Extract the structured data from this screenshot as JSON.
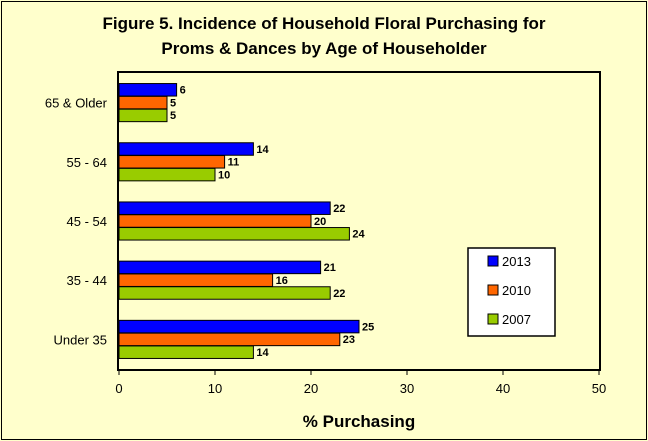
{
  "chart_data": {
    "type": "bar",
    "orientation": "horizontal",
    "title_line1": "Figure 5.  Incidence of Household Floral Purchasing for",
    "title_line2": "Proms & Dances by Age of Householder",
    "xlabel": "% Purchasing",
    "ylabel": "",
    "xlim": [
      0,
      50
    ],
    "x_ticks": [
      "0",
      "10",
      "20",
      "30",
      "40",
      "50"
    ],
    "categories": [
      "65 & Older",
      "55 - 64",
      "45 - 54",
      "35 - 44",
      "Under 35"
    ],
    "series": [
      {
        "name": "2013",
        "color": "#0000ff",
        "values": [
          6,
          14,
          22,
          21,
          25
        ]
      },
      {
        "name": "2010",
        "color": "#ff6600",
        "values": [
          5,
          11,
          20,
          16,
          23
        ]
      },
      {
        "name": "2007",
        "color": "#99cc00",
        "values": [
          5,
          10,
          24,
          22,
          14
        ]
      }
    ],
    "data_labels": [
      [
        "6",
        "14",
        "22",
        "21",
        "25"
      ],
      [
        "5",
        "11",
        "20",
        "16",
        "23"
      ],
      [
        "5",
        "10",
        "24",
        "22",
        "14"
      ]
    ],
    "grid": false,
    "legend_position": "bottom-right",
    "colors": {
      "background": "#ffffcc",
      "plot_area": "#ffffcc",
      "border": "#000000"
    }
  }
}
